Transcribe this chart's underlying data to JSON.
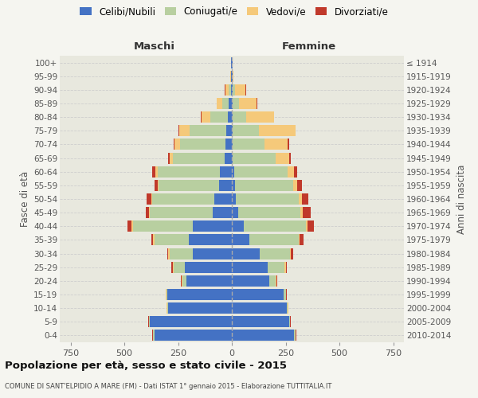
{
  "age_groups": [
    "0-4",
    "5-9",
    "10-14",
    "15-19",
    "20-24",
    "25-29",
    "30-34",
    "35-39",
    "40-44",
    "45-49",
    "50-54",
    "55-59",
    "60-64",
    "65-69",
    "70-74",
    "75-79",
    "80-84",
    "85-89",
    "90-94",
    "95-99",
    "100+"
  ],
  "birth_years": [
    "2010-2014",
    "2005-2009",
    "2000-2004",
    "1995-1999",
    "1990-1994",
    "1985-1989",
    "1980-1984",
    "1975-1979",
    "1970-1974",
    "1965-1969",
    "1960-1964",
    "1955-1959",
    "1950-1954",
    "1945-1949",
    "1940-1944",
    "1935-1939",
    "1930-1934",
    "1925-1929",
    "1920-1924",
    "1915-1919",
    "≤ 1914"
  ],
  "male_celibi": [
    360,
    380,
    295,
    300,
    210,
    220,
    180,
    200,
    180,
    90,
    80,
    60,
    55,
    35,
    30,
    25,
    20,
    15,
    5,
    3,
    2
  ],
  "male_coniugati": [
    5,
    5,
    5,
    5,
    20,
    50,
    110,
    160,
    280,
    290,
    290,
    280,
    290,
    240,
    210,
    170,
    80,
    30,
    10,
    2,
    0
  ],
  "male_vedovi": [
    2,
    2,
    2,
    2,
    3,
    5,
    5,
    5,
    5,
    5,
    5,
    5,
    10,
    15,
    25,
    50,
    40,
    25,
    15,
    2,
    0
  ],
  "male_divorziati": [
    2,
    2,
    2,
    2,
    3,
    5,
    5,
    10,
    20,
    15,
    20,
    15,
    15,
    5,
    5,
    5,
    5,
    2,
    2,
    0,
    0
  ],
  "female_celibi": [
    290,
    265,
    255,
    240,
    175,
    165,
    130,
    80,
    55,
    30,
    20,
    15,
    10,
    5,
    5,
    5,
    5,
    5,
    3,
    2,
    2
  ],
  "female_coniugati": [
    5,
    5,
    5,
    10,
    30,
    80,
    140,
    230,
    290,
    290,
    290,
    270,
    250,
    200,
    145,
    120,
    60,
    30,
    10,
    2,
    0
  ],
  "female_vedovi": [
    2,
    2,
    2,
    2,
    3,
    5,
    5,
    5,
    5,
    10,
    15,
    20,
    30,
    60,
    110,
    170,
    130,
    80,
    50,
    5,
    0
  ],
  "female_divorziati": [
    2,
    2,
    2,
    2,
    3,
    5,
    10,
    20,
    30,
    35,
    30,
    20,
    15,
    10,
    5,
    2,
    2,
    2,
    2,
    0,
    0
  ],
  "colors": {
    "celibi": "#4472c4",
    "coniugati": "#b8cfa0",
    "vedovi": "#f5c97a",
    "divorziati": "#c0392b"
  },
  "xlim": 800,
  "xticks": [
    -750,
    -500,
    -250,
    0,
    250,
    500,
    750
  ],
  "title": "Popolazione per età, sesso e stato civile - 2015",
  "subtitle": "COMUNE DI SANT'ELPIDIO A MARE (FM) - Dati ISTAT 1° gennaio 2015 - Elaborazione TUTTITALIA.IT",
  "label_maschi": "Maschi",
  "label_femmine": "Femmine",
  "ylabel_left": "Fasce di età",
  "ylabel_right": "Anni di nascita",
  "bg_color": "#f5f5f0",
  "bar_bg": "#e8e8de",
  "legend": [
    "Celibi/Nubili",
    "Coniugati/e",
    "Vedovi/e",
    "Divorziati/e"
  ]
}
